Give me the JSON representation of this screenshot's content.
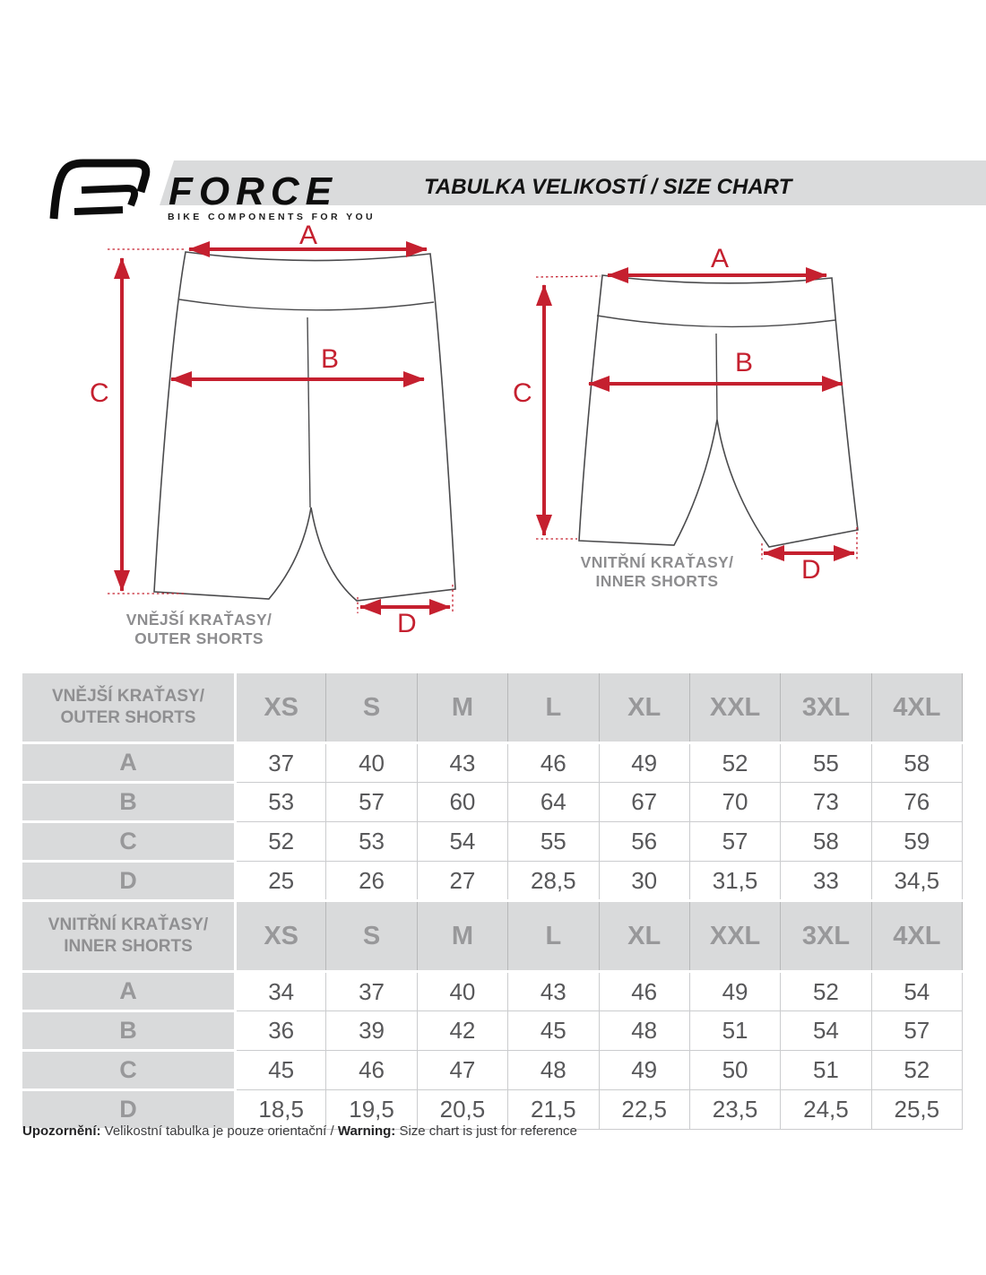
{
  "header": {
    "brand_name": "FORCE",
    "brand_tagline": "BIKE COMPONENTS FOR YOU",
    "title": "TABULKA VELIKOSTÍ / SIZE CHART"
  },
  "diagrams": {
    "labels": {
      "a": "A",
      "b": "B",
      "c": "C",
      "d": "D"
    },
    "outer_caption_line1": "VNĚJŠÍ KRAŤASY/",
    "outer_caption_line2": "OUTER SHORTS",
    "inner_caption_line1": "VNITŘNÍ KRAŤASY/",
    "inner_caption_line2": "INNER SHORTS"
  },
  "tables": [
    {
      "section_label_line1": "VNĚJŠÍ KRAŤASY/",
      "section_label_line2": "OUTER SHORTS",
      "sizes": [
        "XS",
        "S",
        "M",
        "L",
        "XL",
        "XXL",
        "3XL",
        "4XL"
      ],
      "rows": [
        {
          "label": "A",
          "values": [
            "37",
            "40",
            "43",
            "46",
            "49",
            "52",
            "55",
            "58"
          ]
        },
        {
          "label": "B",
          "values": [
            "53",
            "57",
            "60",
            "64",
            "67",
            "70",
            "73",
            "76"
          ]
        },
        {
          "label": "C",
          "values": [
            "52",
            "53",
            "54",
            "55",
            "56",
            "57",
            "58",
            "59"
          ]
        },
        {
          "label": "D",
          "values": [
            "25",
            "26",
            "27",
            "28,5",
            "30",
            "31,5",
            "33",
            "34,5"
          ]
        }
      ]
    },
    {
      "section_label_line1": "VNITŘNÍ KRAŤASY/",
      "section_label_line2": "INNER SHORTS",
      "sizes": [
        "XS",
        "S",
        "M",
        "L",
        "XL",
        "XXL",
        "3XL",
        "4XL"
      ],
      "rows": [
        {
          "label": "A",
          "values": [
            "34",
            "37",
            "40",
            "43",
            "46",
            "49",
            "52",
            "54"
          ]
        },
        {
          "label": "B",
          "values": [
            "36",
            "39",
            "42",
            "45",
            "48",
            "51",
            "54",
            "57"
          ]
        },
        {
          "label": "C",
          "values": [
            "45",
            "46",
            "47",
            "48",
            "49",
            "50",
            "51",
            "52"
          ]
        },
        {
          "label": "D",
          "values": [
            "18,5",
            "19,5",
            "20,5",
            "21,5",
            "22,5",
            "23,5",
            "24,5",
            "25,5"
          ]
        }
      ]
    }
  ],
  "footer": {
    "note_bold1": "Upozornění:",
    "note_text1": " Velikostní tabulka je pouze orientační / ",
    "note_bold2": "Warning:",
    "note_text2": " Size chart is just for reference"
  },
  "colors": {
    "accent_red": "#c5202f",
    "band_gray": "#dadbdc",
    "cell_gray": "#d9dadb",
    "header_text_gray": "#98989a",
    "data_text_gray": "#58585a"
  }
}
